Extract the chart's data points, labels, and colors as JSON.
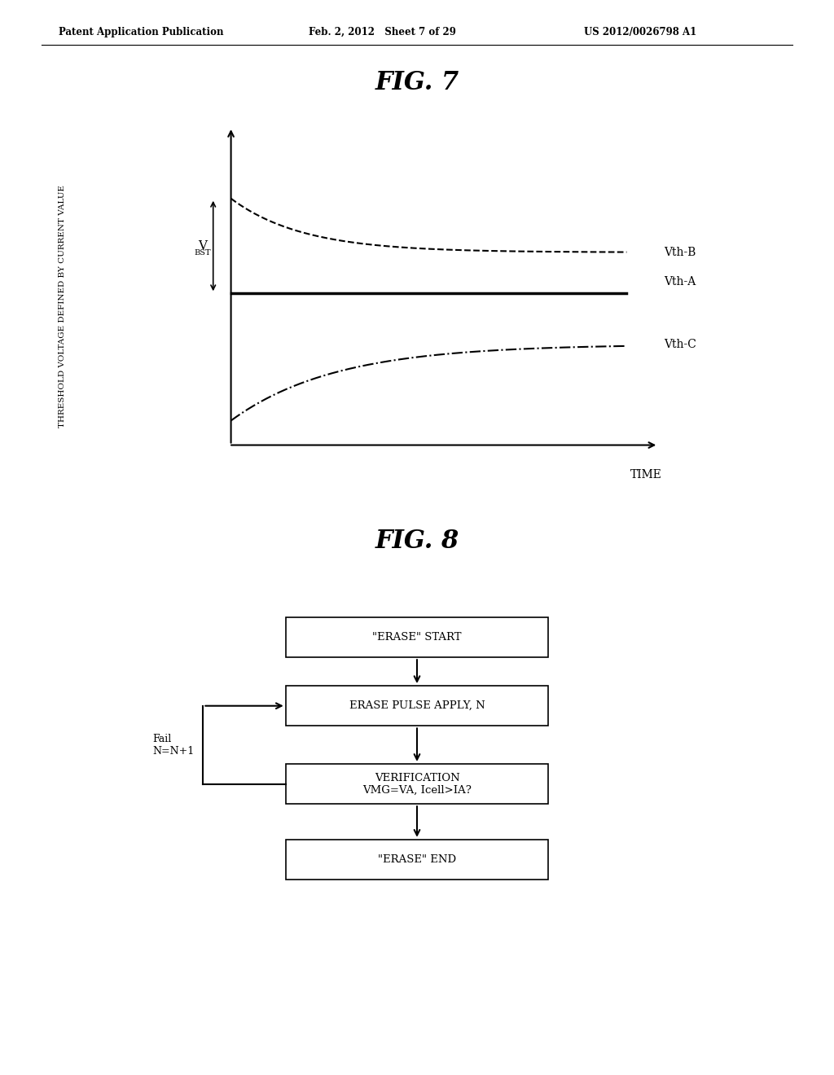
{
  "header_left": "Patent Application Publication",
  "header_mid": "Feb. 2, 2012   Sheet 7 of 29",
  "header_right": "US 2012/0026798 A1",
  "fig7_title": "FIG. 7",
  "fig8_title": "FIG. 8",
  "ylabel": "THRESHOLD VOLTAGE DEFINED BY CURRENT VALUE",
  "xlabel": "TIME",
  "vbst_label": "V",
  "vbst_sub": "BST",
  "vth_b_label": "Vth-B",
  "vth_a_label": "Vth-A",
  "vth_c_label": "Vth-C",
  "flow_boxes": [
    "\"ERASE\" START",
    "ERASE PULSE APPLY, N",
    "VERIFICATION\nVMG=VA, Icell>IA?",
    "\"ERASE\" END"
  ],
  "flow_fail_label": "Fail\nN=N+1",
  "bg_color": "#ffffff"
}
